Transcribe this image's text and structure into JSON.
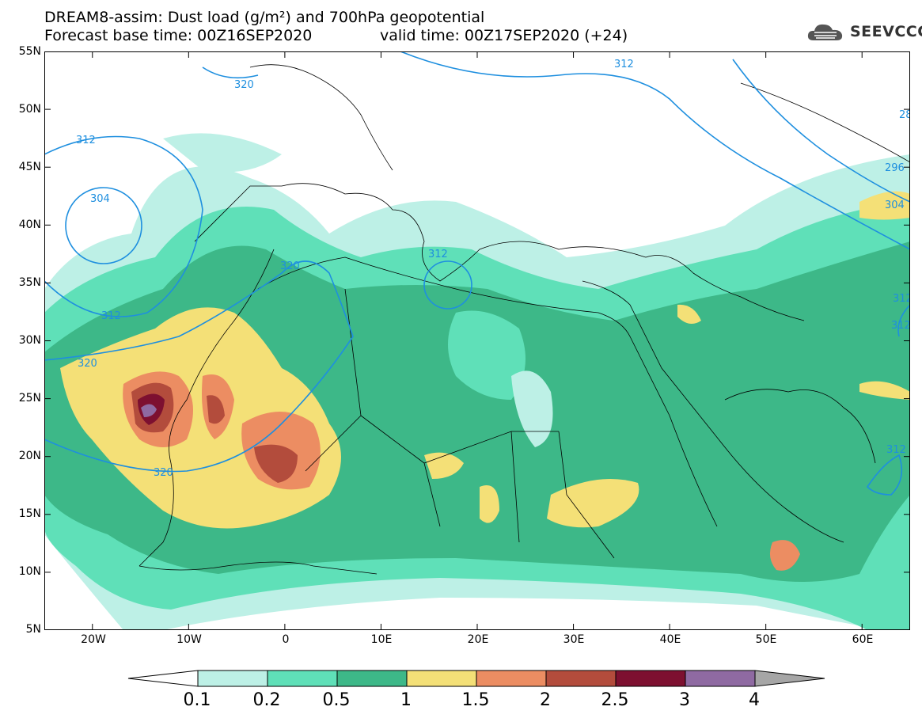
{
  "header": {
    "title_line1": "DREAM8-assim: Dust load (g/m²) and 700hPa geopotential",
    "title_line2": "Forecast base time: 00Z16SEP2020",
    "valid_time": "valid time: 00Z17SEP2020 (+24)",
    "logo_text": "SEEVCCC"
  },
  "map": {
    "lat_labels": [
      "55N",
      "50N",
      "45N",
      "40N",
      "35N",
      "30N",
      "25N",
      "20N",
      "15N",
      "10N",
      "5N"
    ],
    "lon_labels": [
      "20W",
      "10W",
      "0",
      "10E",
      "20E",
      "30E",
      "40E",
      "50E",
      "60E"
    ],
    "lat_range": [
      5,
      55
    ],
    "lon_range": [
      -25,
      65
    ],
    "contour_labels": [
      "312",
      "320",
      "312",
      "304",
      "312",
      "320",
      "320",
      "312",
      "320",
      "312",
      "296",
      "304",
      "312",
      "312",
      "28"
    ]
  },
  "colorbar": {
    "tick_labels": [
      "0.1",
      "0.2",
      "0.5",
      "1",
      "1.5",
      "2",
      "2.5",
      "3",
      "4"
    ],
    "colors": [
      "#bdf0e6",
      "#5fe0b8",
      "#3db888",
      "#f4e077",
      "#ec8d62",
      "#b34c3c",
      "#7d1030",
      "#8f6aa2",
      "#a6a6a6"
    ]
  },
  "colors": {
    "contour": "#1e8fdf",
    "coast": "#000000"
  }
}
